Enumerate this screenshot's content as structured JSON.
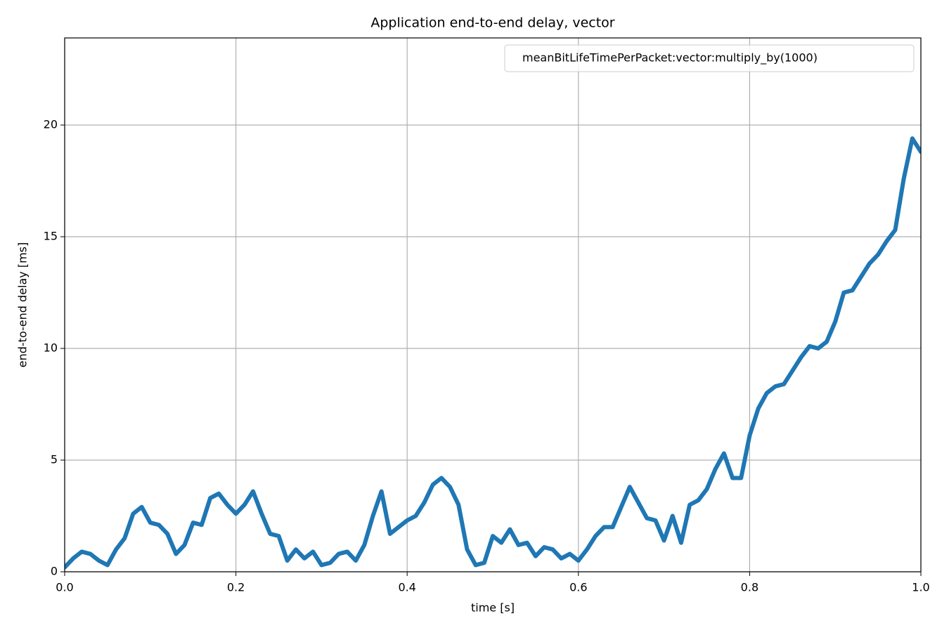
{
  "chart_data": {
    "type": "line",
    "title": "Application end-to-end delay, vector",
    "x_label": "time [s]",
    "y_label": "end-to-end delay [ms]",
    "x": [
      0.0,
      0.01,
      0.02,
      0.03,
      0.04,
      0.05,
      0.06,
      0.07,
      0.08,
      0.09,
      0.1,
      0.11,
      0.12,
      0.13,
      0.14,
      0.15,
      0.16,
      0.17,
      0.18,
      0.19,
      0.2,
      0.21,
      0.22,
      0.23,
      0.24,
      0.25,
      0.26,
      0.27,
      0.28,
      0.29,
      0.3,
      0.31,
      0.32,
      0.33,
      0.34,
      0.35,
      0.36,
      0.37,
      0.38,
      0.39,
      0.4,
      0.41,
      0.42,
      0.43,
      0.44,
      0.45,
      0.46,
      0.47,
      0.48,
      0.49,
      0.5,
      0.51,
      0.52,
      0.53,
      0.54,
      0.55,
      0.56,
      0.57,
      0.58,
      0.59,
      0.6,
      0.61,
      0.62,
      0.63,
      0.64,
      0.65,
      0.66,
      0.67,
      0.68,
      0.69,
      0.7,
      0.71,
      0.72,
      0.73,
      0.74,
      0.75,
      0.76,
      0.77,
      0.78,
      0.79,
      0.8,
      0.81,
      0.82,
      0.83,
      0.84,
      0.85,
      0.86,
      0.87,
      0.88,
      0.89,
      0.9,
      0.91,
      0.92,
      0.93,
      0.94,
      0.95,
      0.96,
      0.97,
      0.98,
      0.99,
      1.0
    ],
    "series": [
      {
        "name": "meanBitLifeTimePerPacket:vector:multiply_by(1000)",
        "color": "#1f77b4",
        "values": [
          0.2,
          0.6,
          0.9,
          0.8,
          0.5,
          0.3,
          1.0,
          1.5,
          2.6,
          2.9,
          2.2,
          2.1,
          1.7,
          0.8,
          1.2,
          2.2,
          2.1,
          3.3,
          3.5,
          3.0,
          2.6,
          3.0,
          3.6,
          2.6,
          1.7,
          1.6,
          0.5,
          1.0,
          0.6,
          0.9,
          0.3,
          0.4,
          0.8,
          0.9,
          0.5,
          1.2,
          2.5,
          3.6,
          1.7,
          2.0,
          2.3,
          2.5,
          3.1,
          3.9,
          4.2,
          3.8,
          3.0,
          1.0,
          0.3,
          0.4,
          1.6,
          1.3,
          1.9,
          1.2,
          1.3,
          0.7,
          1.1,
          1.0,
          0.6,
          0.8,
          0.5,
          1.0,
          1.6,
          2.0,
          2.0,
          2.9,
          3.8,
          3.1,
          2.4,
          2.3,
          1.4,
          2.5,
          1.3,
          3.0,
          3.2,
          3.7,
          4.6,
          5.3,
          4.2,
          4.2,
          6.1,
          7.3,
          8.0,
          8.3,
          8.4,
          9.0,
          9.6,
          10.1,
          10.0,
          10.3,
          11.2,
          12.5,
          12.6,
          13.2,
          13.8,
          14.2,
          14.8,
          15.3,
          17.6,
          19.4,
          18.8
        ]
      }
    ],
    "xlim": [
      0,
      1
    ],
    "xticks": [
      {
        "value": 0,
        "label": "0.0"
      },
      0.2,
      0.4,
      0.6,
      0.8,
      {
        "value": 1,
        "label": "1.0"
      }
    ],
    "ylim": [
      0,
      23.9
    ],
    "yticks": [
      0,
      5,
      10,
      15,
      20
    ],
    "grid": true,
    "legend": "upper right"
  }
}
